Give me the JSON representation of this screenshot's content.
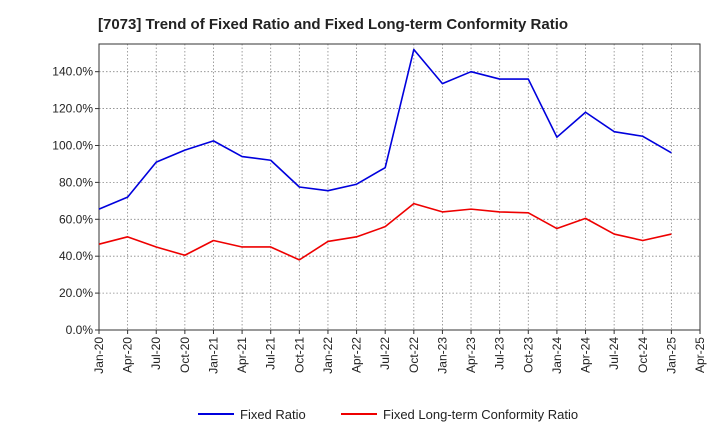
{
  "chart_data": {
    "type": "line",
    "title": "[7073]  Trend of Fixed Ratio and Fixed Long-term Conformity Ratio",
    "x": [
      "Jan-20",
      "Apr-20",
      "Jul-20",
      "Oct-20",
      "Jan-21",
      "Apr-21",
      "Jul-21",
      "Oct-21",
      "Jan-22",
      "Apr-22",
      "Jul-22",
      "Oct-22",
      "Jan-23",
      "Apr-23",
      "Jul-23",
      "Oct-23",
      "Jan-24",
      "Apr-24",
      "Jul-24",
      "Oct-24",
      "Jan-25"
    ],
    "x_ticks": [
      "Jan-20",
      "Apr-20",
      "Jul-20",
      "Oct-20",
      "Jan-21",
      "Apr-21",
      "Jul-21",
      "Oct-21",
      "Jan-22",
      "Apr-22",
      "Jul-22",
      "Oct-22",
      "Jan-23",
      "Apr-23",
      "Jul-23",
      "Oct-23",
      "Jan-24",
      "Apr-24",
      "Jul-24",
      "Oct-24",
      "Jan-25",
      "Apr-25"
    ],
    "y_ticks": [
      "0.0%",
      "20.0%",
      "40.0%",
      "60.0%",
      "80.0%",
      "100.0%",
      "120.0%",
      "140.0%"
    ],
    "ylim": [
      0,
      155
    ],
    "grid": true,
    "legend_position": "bottom",
    "series": [
      {
        "name": "Fixed Ratio",
        "color": "#0000dd",
        "values": [
          65.5,
          72.0,
          91.0,
          97.5,
          102.5,
          94.0,
          92.0,
          77.5,
          75.5,
          79.0,
          88.0,
          152.0,
          133.5,
          140.0,
          136.0,
          136.0,
          104.5,
          118.0,
          107.5,
          105.0,
          96.0
        ]
      },
      {
        "name": "Fixed Long-term Conformity Ratio",
        "color": "#ee0000",
        "values": [
          46.5,
          50.5,
          45.0,
          40.5,
          48.5,
          45.0,
          45.0,
          38.0,
          48.0,
          50.5,
          56.0,
          68.5,
          64.0,
          65.5,
          64.0,
          63.5,
          55.0,
          60.5,
          52.0,
          48.5,
          52.0
        ]
      }
    ]
  }
}
